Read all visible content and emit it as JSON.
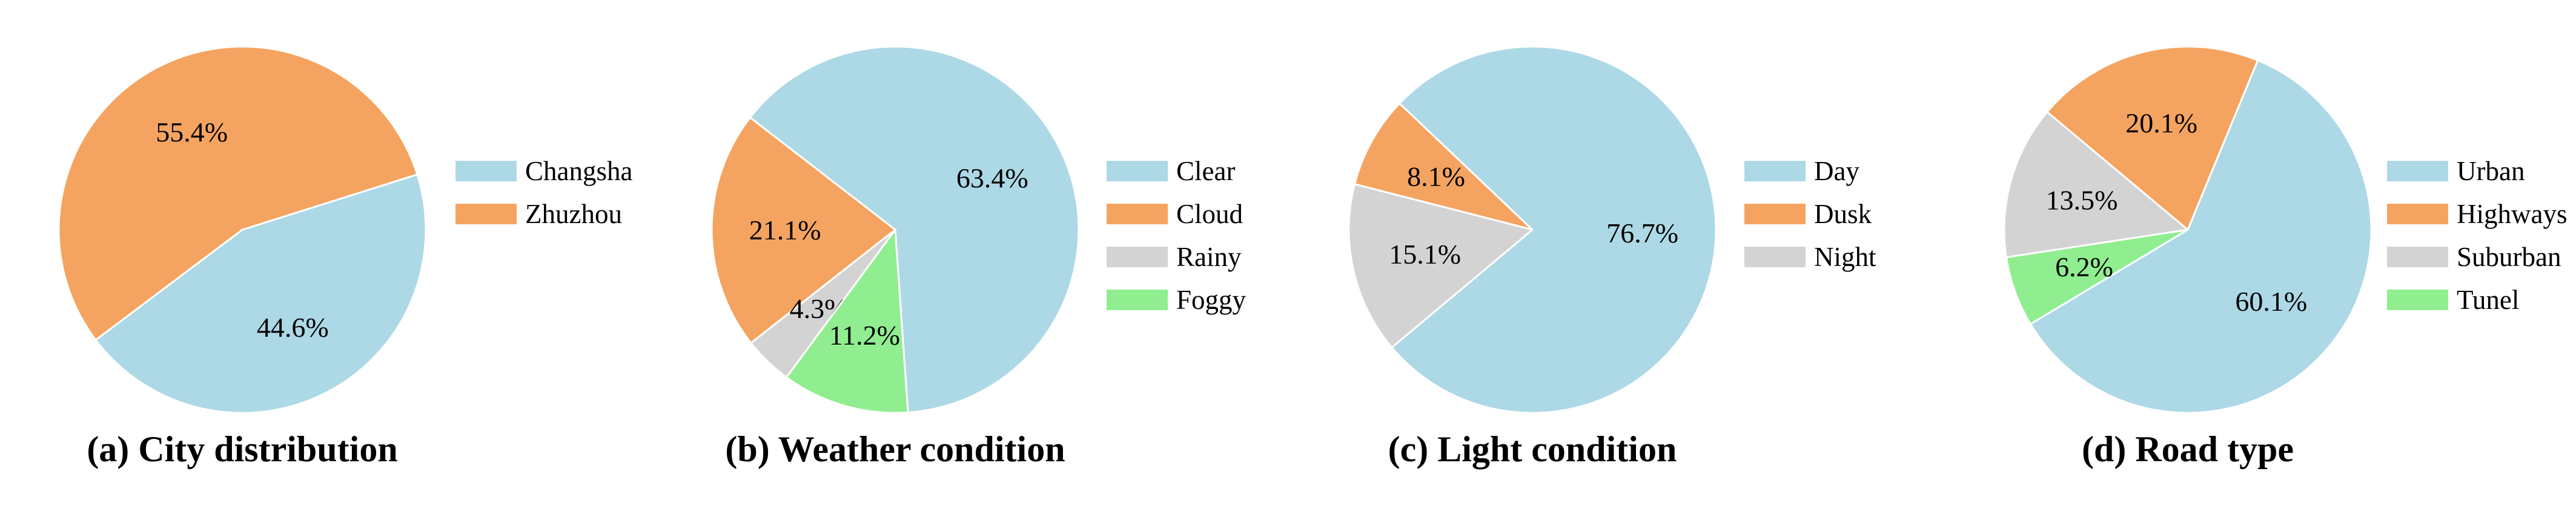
{
  "chart_data": [
    {
      "type": "pie",
      "caption": "(a) City distribution",
      "start_angle_deg": 217,
      "labels": [
        "Changsha",
        "Zhuzhou"
      ],
      "values": [
        44.6,
        55.4
      ],
      "value_labels": [
        "44.6%",
        "55.4%"
      ],
      "colors": [
        "#ADD8E6",
        "#F4A460"
      ],
      "legend_placement": "right"
    },
    {
      "type": "pie",
      "caption": "(b) Weather condition",
      "start_angle_deg": 274,
      "labels": [
        "Clear",
        "Cloud",
        "Rainy",
        "Foggy"
      ],
      "values": [
        63.4,
        21.1,
        4.3,
        11.2
      ],
      "value_labels": [
        "63.4%",
        "21.1%",
        "4.3%",
        "11.2%"
      ],
      "colors": [
        "#ADD8E6",
        "#F4A460",
        "#D3D3D3",
        "#90EE90"
      ],
      "legend_placement": "right"
    },
    {
      "type": "pie",
      "caption": "(c) Light condition",
      "start_angle_deg": 220,
      "labels": [
        "Day",
        "Dusk",
        "Night"
      ],
      "values": [
        76.7,
        8.1,
        15.1
      ],
      "value_labels": [
        "76.7%",
        "8.1%",
        "15.1%"
      ],
      "colors": [
        "#ADD8E6",
        "#F4A460",
        "#D3D3D3"
      ],
      "legend_placement": "right"
    },
    {
      "type": "pie",
      "caption": "(d) Road type",
      "start_angle_deg": 211,
      "labels": [
        "Urban",
        "Highways",
        "Suburban",
        "Tunel"
      ],
      "values": [
        60.1,
        20.1,
        13.5,
        6.2
      ],
      "value_labels": [
        "60.1%",
        "20.1%",
        "13.5%",
        "6.2%"
      ],
      "colors": [
        "#ADD8E6",
        "#F4A460",
        "#D3D3D3",
        "#90EE90"
      ],
      "legend_placement": "right"
    }
  ]
}
